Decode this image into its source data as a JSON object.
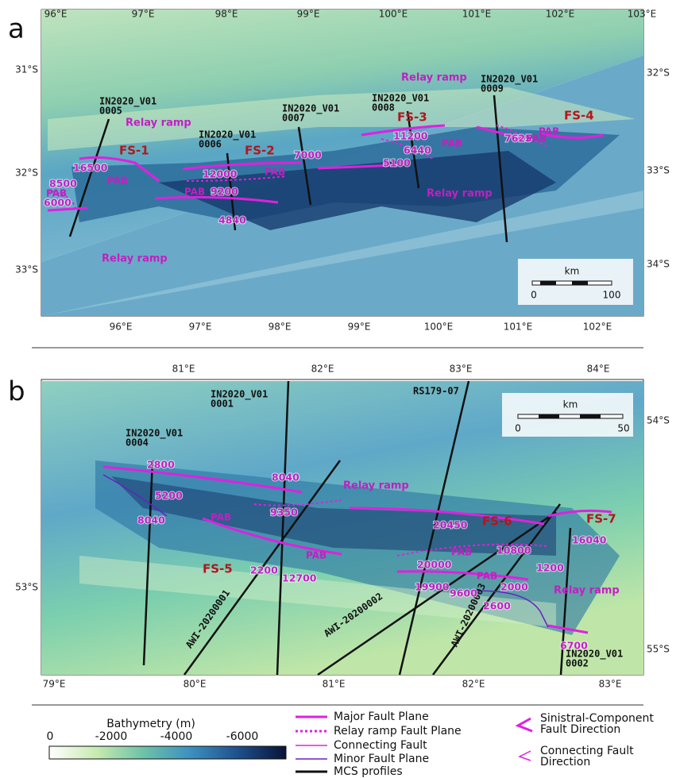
{
  "panel_a": {
    "label": "a",
    "top_lon_labels": [
      "96°E",
      "97°E",
      "98°E",
      "99°E",
      "100°E",
      "101°E",
      "102°E",
      "103°E"
    ],
    "bottom_lon_labels": [
      "96°E",
      "97°E",
      "98°E",
      "99°E",
      "100°E",
      "101°E",
      "102°E"
    ],
    "left_lat_labels": [
      "31°S",
      "32°S",
      "33°S"
    ],
    "right_lat_labels": [
      "32°S",
      "33°S",
      "34°S"
    ],
    "profiles": [
      {
        "line": "IN2020_V01",
        "id": "0005"
      },
      {
        "line": "IN2020_V01",
        "id": "0006"
      },
      {
        "line": "IN2020_V01",
        "id": "0007"
      },
      {
        "line": "IN2020_V01",
        "id": "0008"
      },
      {
        "line": "IN2020_V01",
        "id": "0009"
      }
    ],
    "fault_systems": [
      "FS-1",
      "FS-2",
      "FS-3",
      "FS-4"
    ],
    "offsets": [
      "16500",
      "8500",
      "6000",
      "12000",
      "9200",
      "4840",
      "7000",
      "11200",
      "6440",
      "5100",
      "7625"
    ],
    "pab_labels": [
      "PAB",
      "PAB",
      "PAB",
      "PAB",
      "PAB",
      "PAB",
      "PAB"
    ],
    "relay_ramp_labels": [
      "Relay ramp",
      "Relay ramp",
      "Relay ramp",
      "Relay ramp"
    ],
    "scale_bar": {
      "unit": "km",
      "labels": [
        "0",
        "100"
      ]
    }
  },
  "panel_b": {
    "label": "b",
    "top_lon_labels": [
      "81°E",
      "82°E",
      "83°E",
      "84°E"
    ],
    "bottom_lon_labels": [
      "79°E",
      "80°E",
      "81°E",
      "82°E",
      "83°E"
    ],
    "left_lat_labels": [
      "53°S"
    ],
    "right_lat_labels": [
      "54°S",
      "55°S"
    ],
    "profiles": [
      {
        "line": "IN2020_V01",
        "id": "0001"
      },
      {
        "line": "IN2020_V01",
        "id": "0004"
      },
      {
        "line": "RS179-07"
      },
      {
        "line": "IN2020_V01",
        "id": "0002"
      },
      {
        "line": "AWI-20200001"
      },
      {
        "line": "AWI-20200002"
      },
      {
        "line": "AWI-20200003"
      }
    ],
    "fault_systems": [
      "FS-5",
      "FS-6",
      "FS-7"
    ],
    "offsets": [
      "2800",
      "5200",
      "8040",
      "8040",
      "9350",
      "2200",
      "12700",
      "20450",
      "10800",
      "20000",
      "1200",
      "19900",
      "9600",
      "2000",
      "2600",
      "16040",
      "6700"
    ],
    "pab_labels": [
      "PAB",
      "PAB",
      "PAB",
      "PAB"
    ],
    "relay_ramp_labels": [
      "Relay ramp",
      "Relay ramp"
    ],
    "scale_bar": {
      "unit": "km",
      "labels": [
        "0",
        "50"
      ]
    }
  },
  "legend": {
    "colorbar": {
      "title": "Bathymetry (m)",
      "labels": [
        "0",
        "-2000",
        "-4000",
        "-6000"
      ]
    },
    "lines": [
      "Major Fault Plane",
      "Relay ramp Fault Plane",
      "Connecting Fault",
      "Minor Fault Plane",
      "MCS profiles"
    ],
    "arrows": [
      [
        "Sinistral-Component",
        "Fault Direction"
      ],
      [
        "Connecting Fault",
        "Direction"
      ]
    ]
  }
}
